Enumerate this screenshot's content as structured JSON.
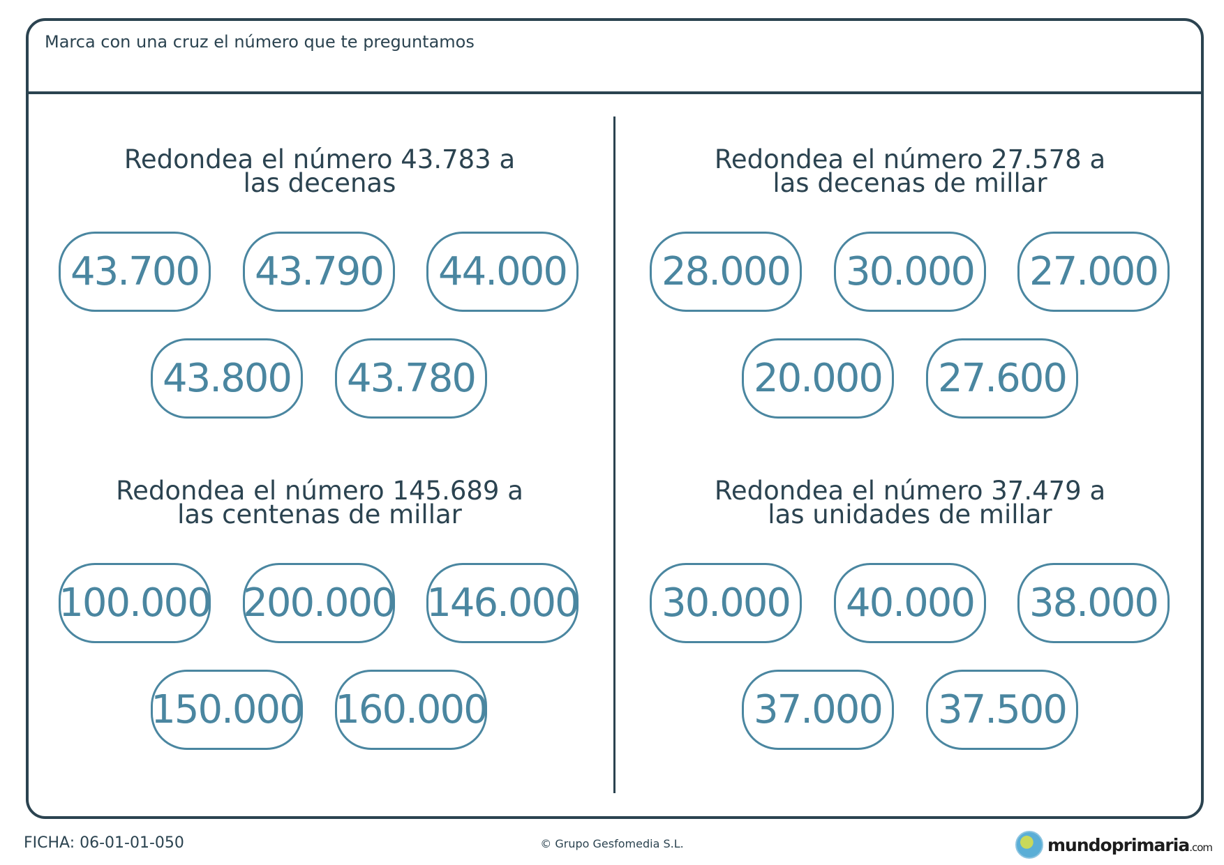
{
  "instruction": "Marca con una cruz el número que te preguntamos",
  "exercises": [
    {
      "line1": "Redondea el número 43.783 a",
      "line2": "las decenas",
      "options": [
        "43.700",
        "43.790",
        "44.000",
        "43.800",
        "43.780"
      ]
    },
    {
      "line1": "Redondea el número 27.578 a",
      "line2": "las decenas de millar",
      "options": [
        "28.000",
        "30.000",
        "27.000",
        "20.000",
        "27.600"
      ]
    },
    {
      "line1": "Redondea el número 145.689 a",
      "line2": "las centenas de millar",
      "options": [
        "100.000",
        "200.000",
        "146.000",
        "150.000",
        "160.000"
      ]
    },
    {
      "line1": "Redondea el número 37.479 a",
      "line2": "las unidades de millar",
      "options": [
        "30.000",
        "40.000",
        "38.000",
        "37.000",
        "37.500"
      ]
    }
  ],
  "footer": {
    "code": "FICHA: 06-01-01-050",
    "copyright": "© Grupo Gesfomedia S.L.",
    "logo": "mundoprimaria",
    "logo_suffix": ".com"
  },
  "colors": {
    "dark": "#2b4350",
    "accent": "#4a86a0"
  }
}
